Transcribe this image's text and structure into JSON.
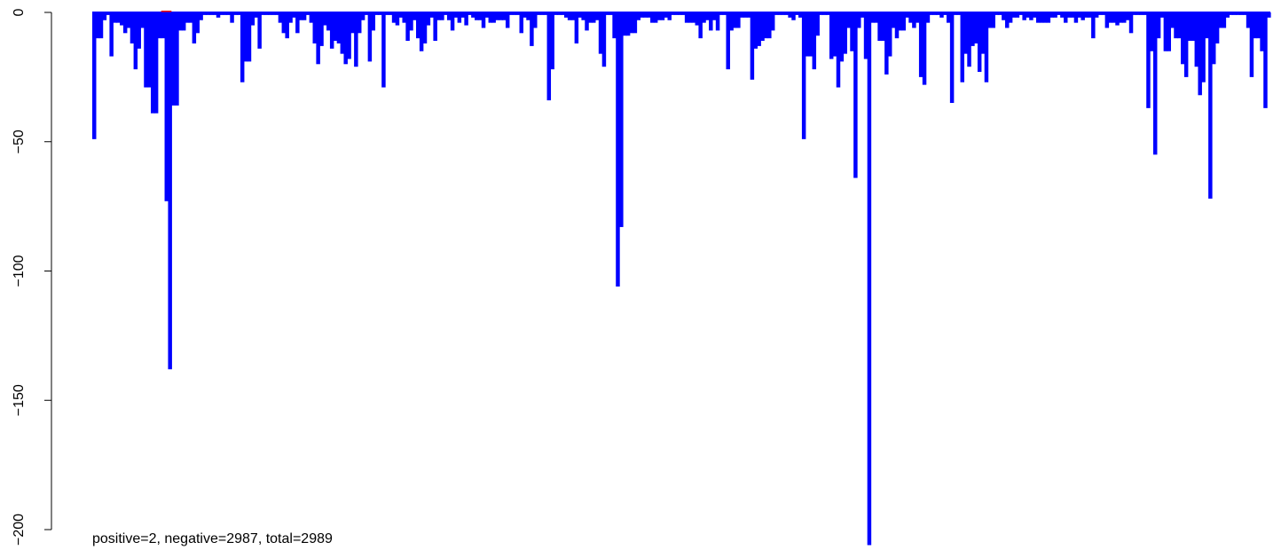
{
  "chart_data": {
    "type": "bar",
    "title": "",
    "xlabel": "",
    "ylabel": "",
    "ylim": [
      -205,
      0
    ],
    "yticks": [
      {
        "value": 0,
        "label": "0"
      },
      {
        "value": -50,
        "label": "−50"
      },
      {
        "value": -100,
        "label": "−100"
      },
      {
        "value": -150,
        "label": "−150"
      },
      {
        "value": -200,
        "label": "−200"
      }
    ],
    "caption": "positive=2, negative=2987, total=2989",
    "colors": {
      "negative": "#0000ff",
      "positive": "#ff0000",
      "axis": "#000000"
    },
    "series": [
      {
        "values": [
          -49,
          -10,
          -10,
          -3,
          -1,
          -17,
          -4,
          -4,
          -5,
          -8,
          -6,
          -12,
          -22,
          -14,
          -6,
          -29,
          -29,
          -39,
          -39,
          -10,
          -10,
          -73,
          -138,
          -36,
          -36,
          -7,
          -7,
          -4,
          -4,
          -12,
          -8,
          -3,
          -1,
          -1,
          -1,
          -1,
          -2,
          -1,
          -1,
          -1,
          -4,
          -1,
          -1,
          -27,
          -19,
          -19,
          -5,
          -2,
          -14,
          -1,
          -1,
          -1,
          -1,
          -1,
          -4,
          -8,
          -10,
          -4,
          -2,
          -8,
          -3,
          -3,
          -1,
          -4,
          -12,
          -20,
          -13,
          -5,
          -7,
          -14,
          -11,
          -12,
          -16,
          -20,
          -18,
          -8,
          -21,
          -8,
          -3,
          -1,
          -19,
          -7,
          -1,
          -1,
          -29,
          -1,
          -1,
          -4,
          -5,
          -2,
          -4,
          -11,
          -7,
          -3,
          -10,
          -15,
          -12,
          -5,
          -2,
          -11,
          -3,
          -3,
          -1,
          -3,
          -7,
          -2,
          -4,
          -2,
          -5,
          -1,
          -2,
          -3,
          -3,
          -6,
          -2,
          -4,
          -4,
          -3,
          -3,
          -3,
          -6,
          -1,
          -1,
          -1,
          -8,
          -2,
          -3,
          -13,
          -6,
          -1,
          -1,
          -1,
          -34,
          -22,
          -1,
          -1,
          -1,
          -2,
          -3,
          -3,
          -12,
          -2,
          -3,
          -7,
          -4,
          -4,
          -3,
          -16,
          -21,
          -1,
          -1,
          -10,
          -106,
          -83,
          -9,
          -9,
          -8,
          -8,
          -3,
          -2,
          -2,
          -2,
          -4,
          -4,
          -3,
          -3,
          -2,
          -3,
          -1,
          -1,
          -1,
          -1,
          -4,
          -4,
          -4,
          -5,
          -10,
          -4,
          -3,
          -7,
          -3,
          -7,
          -1,
          -1,
          -22,
          -7,
          -6,
          -6,
          -2,
          -2,
          -2,
          -26,
          -14,
          -13,
          -11,
          -10,
          -10,
          -7,
          -1,
          -1,
          -1,
          -1,
          -2,
          -3,
          -1,
          -2,
          -49,
          -17,
          -17,
          -22,
          -9,
          -1,
          -1,
          -1,
          -18,
          -17,
          -29,
          -19,
          -16,
          -6,
          -15,
          -64,
          -6,
          -2,
          -18,
          -206,
          -4,
          -4,
          -11,
          -11,
          -24,
          -17,
          -6,
          -10,
          -7,
          -7,
          -2,
          -4,
          -6,
          -4,
          -25,
          -28,
          -4,
          -1,
          -1,
          -1,
          -2,
          -1,
          -4,
          -35,
          -1,
          -1,
          -27,
          -16,
          -21,
          -13,
          -12,
          -23,
          -16,
          -27,
          -6,
          -6,
          -1,
          -1,
          -3,
          -6,
          -4,
          -2,
          -2,
          -1,
          -3,
          -2,
          -3,
          -2,
          -4,
          -4,
          -4,
          -4,
          -2,
          -2,
          -1,
          -2,
          -4,
          -2,
          -2,
          -4,
          -2,
          -3,
          -2,
          -2,
          -10,
          -2,
          -1,
          -1,
          -6,
          -4,
          -4,
          -5,
          -4,
          -4,
          -3,
          -8,
          -1,
          -1,
          -1,
          -1,
          -37,
          -15,
          -55,
          -10,
          -2,
          -15,
          -15,
          -6,
          -10,
          -10,
          -20,
          -25,
          -11,
          -11,
          -21,
          -32,
          -27,
          -10,
          -72,
          -20,
          -12,
          -6,
          -6,
          -2,
          -1,
          -1,
          -1,
          -1,
          -1,
          -6,
          -25,
          -10,
          -10,
          -15,
          -37,
          -2
        ]
      },
      {
        "name": "positive",
        "values": [
          0.4,
          0.4
        ]
      }
    ]
  }
}
